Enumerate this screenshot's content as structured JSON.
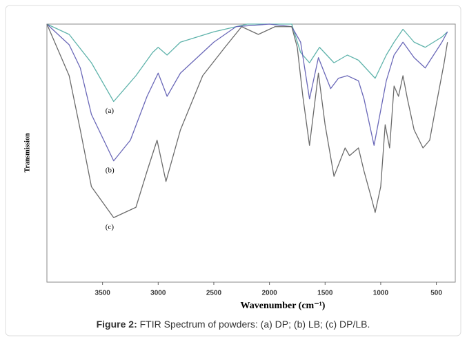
{
  "chart_data": {
    "type": "line",
    "caption_label": "Figure 2:",
    "caption": "FTIR Spectrum of powders: (a) DP; (b) LB; (c) DP/LB.",
    "x_label": "Wavenumber (cm⁻¹)",
    "y_label": "Transmission",
    "xlim": [
      4000,
      330
    ],
    "ylim": [
      0,
      100
    ],
    "xticks": [
      3500,
      3000,
      2500,
      2000,
      1500,
      1000,
      500
    ],
    "series": [
      {
        "name": "(a)",
        "color": "#5fb3ab",
        "x": [
          4000,
          3800,
          3600,
          3400,
          3200,
          3050,
          3000,
          2920,
          2800,
          2500,
          2300,
          2200,
          1800,
          1720,
          1640,
          1550,
          1420,
          1300,
          1200,
          1050,
          950,
          880,
          800,
          700,
          600,
          450,
          400
        ],
        "values": [
          100,
          96,
          85,
          70,
          80,
          89,
          91,
          88,
          93,
          97,
          99,
          100,
          100,
          89,
          85,
          91,
          85,
          88,
          86,
          79,
          88,
          93,
          98,
          93,
          91,
          95,
          97
        ]
      },
      {
        "name": "(b)",
        "color": "#6a68b8",
        "x": [
          4000,
          3800,
          3700,
          3600,
          3400,
          3250,
          3100,
          3000,
          2920,
          2800,
          2500,
          2300,
          2000,
          1800,
          1720,
          1640,
          1560,
          1450,
          1380,
          1300,
          1200,
          1150,
          1060,
          950,
          880,
          800,
          700,
          600,
          450,
          400
        ],
        "values": [
          100,
          92,
          83,
          65,
          47,
          55,
          72,
          81,
          72,
          81,
          93,
          99,
          100,
          99,
          93,
          71,
          87,
          75,
          79,
          80,
          78,
          71,
          53,
          78,
          88,
          93,
          87,
          83,
          93,
          97
        ]
      },
      {
        "name": "(c)",
        "color": "#6b6b6b",
        "x": [
          4000,
          3800,
          3700,
          3600,
          3400,
          3200,
          3100,
          3010,
          2930,
          2800,
          2600,
          2400,
          2250,
          2100,
          1950,
          1800,
          1750,
          1700,
          1640,
          1560,
          1500,
          1420,
          1320,
          1280,
          1200,
          1150,
          1080,
          1050,
          1000,
          960,
          920,
          880,
          840,
          800,
          760,
          700,
          620,
          560,
          500,
          430,
          400
        ],
        "values": [
          100,
          80,
          59,
          37,
          25,
          29,
          43,
          55,
          39,
          59,
          80,
          91,
          99,
          96,
          99,
          99,
          91,
          72,
          53,
          81,
          61,
          41,
          52,
          49,
          52,
          43,
          32,
          27,
          37,
          61,
          52,
          76,
          72,
          80,
          71,
          59,
          52,
          55,
          69,
          85,
          93
        ]
      }
    ]
  }
}
